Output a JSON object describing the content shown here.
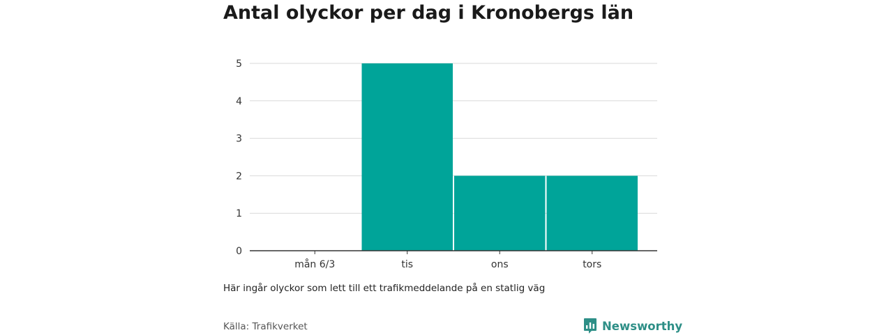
{
  "header": {
    "title": "Antal olyckor per dag i Kronobergs län"
  },
  "footer": {
    "note": "Här ingår olyckor som lett till ett trafikmeddelande på en statlig väg",
    "source": "Källa: Trafikverket",
    "brand": "Newsworthy",
    "brand_icon": "newsworthy-logo-icon"
  },
  "colors": {
    "bar": "#00a499",
    "grid": "#d9d9d9",
    "axis": "#333333",
    "brand": "#2e8f87"
  },
  "chart_data": {
    "type": "bar",
    "title": "Antal olyckor per dag i Kronobergs län",
    "categories": [
      "mån 6/3",
      "tis",
      "ons",
      "tors"
    ],
    "values": [
      0,
      5,
      2,
      2
    ],
    "xlabel": "",
    "ylabel": "",
    "ylim": [
      0,
      5
    ],
    "yticks": [
      0,
      1,
      2,
      3,
      4,
      5
    ],
    "grid": true,
    "legend": "none"
  }
}
